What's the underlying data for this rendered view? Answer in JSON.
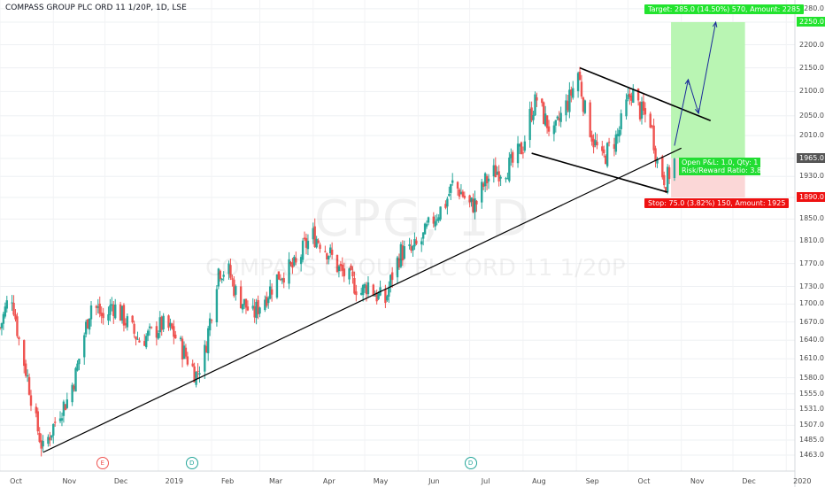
{
  "title": "COMPASS GROUP PLC ORD 11 1/20P, 1D, LSE",
  "watermark": {
    "symbol": "CPG, 1D",
    "name": "COMPASS GROUP PLC ORD 11 1/20P"
  },
  "colors": {
    "up": "#26a69a",
    "down": "#ef5350",
    "target_zone": "#b9f5b3",
    "stop_zone": "#fbd7d7",
    "target_label": "#22e32e",
    "stop_label": "#ee1111",
    "line": "#000000"
  },
  "chart_data": {
    "type": "candlestick",
    "ylim": [
      1440,
      2300
    ],
    "y_scale": "log",
    "y_ticks": [
      "2280.0",
      "2250.0",
      "2200.0",
      "2150.0",
      "2100.0",
      "2050.0",
      "2010.0",
      "1965.0",
      "1930.0",
      "1890.0",
      "1850.0",
      "1810.0",
      "1770.0",
      "1730.0",
      "1700.0",
      "1670.0",
      "1640.0",
      "1610.0",
      "1580.0",
      "1555.0",
      "1531.0",
      "1507.0",
      "1485.0",
      "1463.0"
    ],
    "x_labels": [
      "Oct",
      "Nov",
      "Dec",
      "2019",
      "Feb",
      "Mar",
      "Apr",
      "May",
      "Jun",
      "Jul",
      "Aug",
      "Sep",
      "Oct",
      "Nov",
      "Dec",
      "2020"
    ],
    "x_range": [
      "2018-10-01",
      "2020-01-06"
    ],
    "price_path": [
      [
        "2018-10-01",
        1660
      ],
      [
        "2018-10-05",
        1700
      ],
      [
        "2018-10-08",
        1715
      ],
      [
        "2018-10-12",
        1640
      ],
      [
        "2018-10-17",
        1580
      ],
      [
        "2018-10-22",
        1510
      ],
      [
        "2018-10-26",
        1470
      ],
      [
        "2018-10-31",
        1500
      ],
      [
        "2018-11-05",
        1530
      ],
      [
        "2018-11-09",
        1545
      ],
      [
        "2018-11-14",
        1585
      ],
      [
        "2018-11-19",
        1650
      ],
      [
        "2018-11-23",
        1700
      ],
      [
        "2018-11-27",
        1690
      ],
      [
        "2018-12-01",
        1670
      ],
      [
        "2018-12-05",
        1700
      ],
      [
        "2018-12-11",
        1680
      ],
      [
        "2018-12-17",
        1655
      ],
      [
        "2018-12-21",
        1640
      ],
      [
        "2018-12-28",
        1650
      ],
      [
        "2019-01-03",
        1665
      ],
      [
        "2019-01-09",
        1655
      ],
      [
        "2019-01-14",
        1630
      ],
      [
        "2019-01-18",
        1610
      ],
      [
        "2019-01-23",
        1585
      ],
      [
        "2019-01-28",
        1620
      ],
      [
        "2019-02-01",
        1690
      ],
      [
        "2019-02-05",
        1760
      ],
      [
        "2019-02-11",
        1755
      ],
      [
        "2019-02-15",
        1720
      ],
      [
        "2019-02-20",
        1700
      ],
      [
        "2019-02-25",
        1680
      ],
      [
        "2019-03-01",
        1700
      ],
      [
        "2019-03-06",
        1720
      ],
      [
        "2019-03-12",
        1750
      ],
      [
        "2019-03-18",
        1760
      ],
      [
        "2019-03-22",
        1765
      ],
      [
        "2019-03-27",
        1800
      ],
      [
        "2019-04-01",
        1820
      ],
      [
        "2019-04-05",
        1810
      ],
      [
        "2019-04-10",
        1790
      ],
      [
        "2019-04-16",
        1760
      ],
      [
        "2019-04-23",
        1740
      ],
      [
        "2019-04-29",
        1720
      ],
      [
        "2019-05-03",
        1735
      ],
      [
        "2019-05-08",
        1715
      ],
      [
        "2019-05-13",
        1705
      ],
      [
        "2019-05-17",
        1750
      ],
      [
        "2019-05-22",
        1790
      ],
      [
        "2019-05-28",
        1790
      ],
      [
        "2019-06-03",
        1810
      ],
      [
        "2019-06-07",
        1835
      ],
      [
        "2019-06-12",
        1860
      ],
      [
        "2019-06-17",
        1880
      ],
      [
        "2019-06-21",
        1915
      ],
      [
        "2019-06-26",
        1900
      ],
      [
        "2019-07-01",
        1875
      ],
      [
        "2019-07-05",
        1880
      ],
      [
        "2019-07-10",
        1920
      ],
      [
        "2019-07-16",
        1940
      ],
      [
        "2019-07-22",
        1945
      ],
      [
        "2019-07-26",
        1955
      ],
      [
        "2019-08-01",
        1990
      ],
      [
        "2019-08-05",
        2050
      ],
      [
        "2019-08-09",
        2085
      ],
      [
        "2019-08-14",
        2040
      ],
      [
        "2019-08-19",
        2010
      ],
      [
        "2019-08-23",
        2050
      ],
      [
        "2019-08-28",
        2085
      ],
      [
        "2019-09-02",
        2140
      ],
      [
        "2019-09-06",
        2060
      ],
      [
        "2019-09-11",
        2000
      ],
      [
        "2019-09-16",
        1960
      ],
      [
        "2019-09-20",
        1985
      ],
      [
        "2019-09-25",
        2010
      ],
      [
        "2019-09-30",
        2070
      ],
      [
        "2019-10-03",
        2100
      ],
      [
        "2019-10-08",
        2060
      ],
      [
        "2019-10-14",
        2040
      ],
      [
        "2019-10-18",
        1960
      ],
      [
        "2019-10-23",
        1920
      ],
      [
        "2019-10-28",
        1960
      ]
    ],
    "drawings": {
      "support_line": [
        [
          "2018-10-26",
          1467
        ],
        [
          "2019-11-01",
          1985
        ]
      ],
      "channel_upper": [
        [
          "2019-09-03",
          2150
        ],
        [
          "2019-11-18",
          2040
        ]
      ],
      "channel_lower": [
        [
          "2019-08-06",
          1975
        ],
        [
          "2019-10-24",
          1900
        ]
      ],
      "forecast_arrows": [
        [
          [
            "2019-10-28",
            1990
          ],
          [
            "2019-11-05",
            2125
          ],
          [
            "2019-11-11",
            2055
          ],
          [
            "2019-11-21",
            2250
          ]
        ]
      ],
      "long_position": {
        "from": "2019-10-26",
        "to": "2019-12-08",
        "entry": 1965,
        "target": 2250,
        "stop": 1890
      }
    },
    "labels": {
      "target": "Target: 285.0 (14.50%) 570, Amount: 2285",
      "stop": "Stop: 75.0 (3.82%) 150, Amount: 1925",
      "open_pnl": "Open P&L: 1.0, Qty: 1",
      "risk_reward": "Risk/Reward Ratio: 3.8",
      "price_tags": [
        {
          "price": 2250,
          "text": "2250.0",
          "color": "#22e32e"
        },
        {
          "price": 1965,
          "text": "1965.0",
          "color": "#555555"
        },
        {
          "price": 1890,
          "text": "1890.0",
          "color": "#ee1111"
        }
      ]
    },
    "events": [
      {
        "date": "2018-11-29",
        "letter": "E",
        "color": "#ef5350"
      },
      {
        "date": "2019-01-20",
        "letter": "D",
        "color": "#26a69a"
      },
      {
        "date": "2019-07-01",
        "letter": "D",
        "color": "#26a69a"
      }
    ]
  }
}
